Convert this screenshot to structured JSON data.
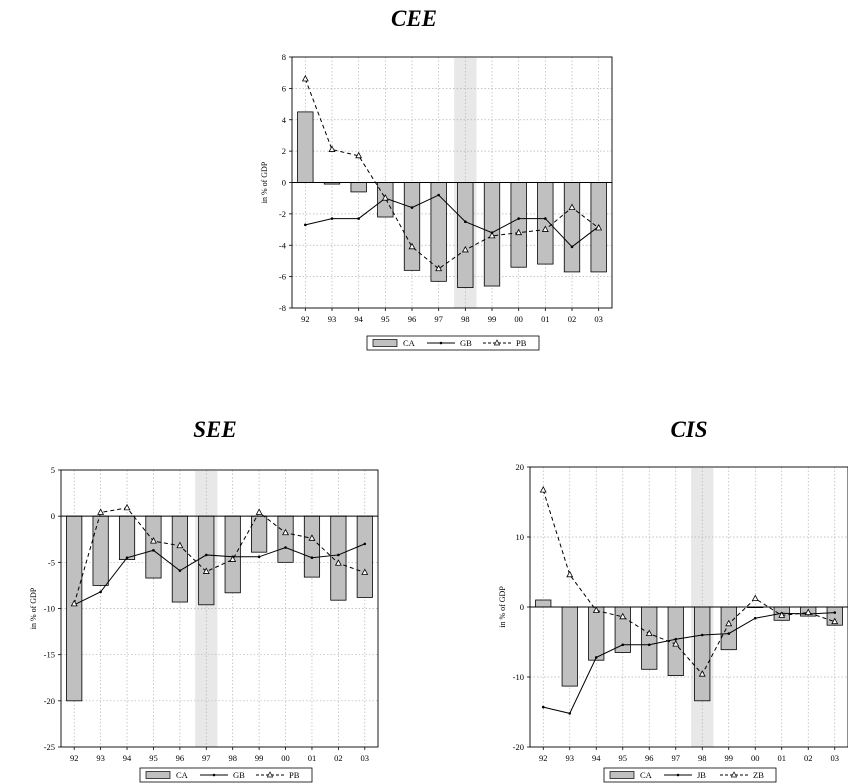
{
  "chart_data": [
    {
      "type": "bar",
      "title": "CEE",
      "ylabel": "in % of GDP",
      "xlabel": "",
      "categories": [
        "92",
        "93",
        "94",
        "95",
        "96",
        "97",
        "98",
        "99",
        "00",
        "01",
        "02",
        "03"
      ],
      "ylim": [
        -8,
        8
      ],
      "yticks": [
        -8,
        -6,
        -4,
        -2,
        0,
        2,
        4,
        6,
        8
      ],
      "grid": true,
      "shaded_category": "98",
      "series": [
        {
          "name": "CA",
          "kind": "bar",
          "values": [
            4.5,
            -0.1,
            -0.6,
            -2.2,
            -5.6,
            -6.3,
            -6.7,
            -6.6,
            -5.4,
            -5.2,
            -5.7,
            -5.7
          ]
        },
        {
          "name": "GB",
          "kind": "line",
          "values": [
            -2.7,
            -2.3,
            -2.3,
            -1.0,
            -1.6,
            -0.8,
            -2.5,
            -3.2,
            -2.3,
            -2.3,
            -4.1,
            -2.8
          ]
        },
        {
          "name": "PB",
          "kind": "dashed-line",
          "values": [
            6.6,
            2.1,
            1.7,
            -1.0,
            -4.1,
            -5.5,
            -4.3,
            -3.4,
            -3.2,
            -3.0,
            -1.6,
            -2.9
          ]
        }
      ]
    },
    {
      "type": "bar",
      "title": "SEE",
      "ylabel": "in % of GDP",
      "xlabel": "",
      "categories": [
        "92",
        "93",
        "94",
        "95",
        "96",
        "97",
        "98",
        "99",
        "00",
        "01",
        "02",
        "03"
      ],
      "ylim": [
        -25,
        5
      ],
      "yticks": [
        -25,
        -20,
        -15,
        -10,
        -5,
        0,
        5
      ],
      "grid": true,
      "shaded_category": "97",
      "series": [
        {
          "name": "CA",
          "kind": "bar",
          "values": [
            -20.0,
            -7.5,
            -4.7,
            -6.7,
            -9.3,
            -9.6,
            -8.3,
            -3.9,
            -5.0,
            -6.6,
            -9.1,
            -8.8
          ]
        },
        {
          "name": "GB",
          "kind": "line",
          "values": [
            -9.6,
            -8.2,
            -4.5,
            -3.7,
            -5.9,
            -4.2,
            -4.4,
            -4.4,
            -3.4,
            -4.5,
            -4.2,
            -3.0
          ]
        },
        {
          "name": "PB",
          "kind": "dashed-line",
          "values": [
            -9.5,
            0.4,
            0.9,
            -2.7,
            -3.2,
            -6.0,
            -4.7,
            0.4,
            -1.8,
            -2.4,
            -5.1,
            -6.1
          ]
        }
      ]
    },
    {
      "type": "bar",
      "title": "CIS",
      "ylabel": "in % of GDP",
      "xlabel": "",
      "categories": [
        "92",
        "93",
        "94",
        "95",
        "96",
        "97",
        "98",
        "99",
        "00",
        "01",
        "02",
        "03"
      ],
      "ylim": [
        -20,
        20
      ],
      "yticks": [
        -20,
        -10,
        0,
        10,
        20
      ],
      "grid": true,
      "shaded_category": "98",
      "series": [
        {
          "name": "CA",
          "kind": "bar",
          "values": [
            1.0,
            -11.3,
            -7.6,
            -6.5,
            -8.9,
            -9.8,
            -13.4,
            -6.1,
            0.0,
            -1.9,
            -1.3,
            -2.6
          ]
        },
        {
          "name": "JB",
          "kind": "line",
          "values": [
            -14.3,
            -15.2,
            -7.2,
            -5.4,
            -5.4,
            -4.6,
            -4.0,
            -3.8,
            -1.6,
            -0.9,
            -1.0,
            -0.8
          ]
        },
        {
          "name": "ZB",
          "kind": "dashed-line",
          "values": [
            16.7,
            4.6,
            -0.5,
            -1.4,
            -3.8,
            -5.3,
            -9.6,
            -2.4,
            1.2,
            -1.2,
            -0.8,
            -2.1
          ]
        }
      ]
    }
  ],
  "colors": {
    "bar_fill": "#c0c0c0",
    "shade": "#e8e8e8",
    "grid": "#b3b3b3",
    "line": "#000000"
  }
}
